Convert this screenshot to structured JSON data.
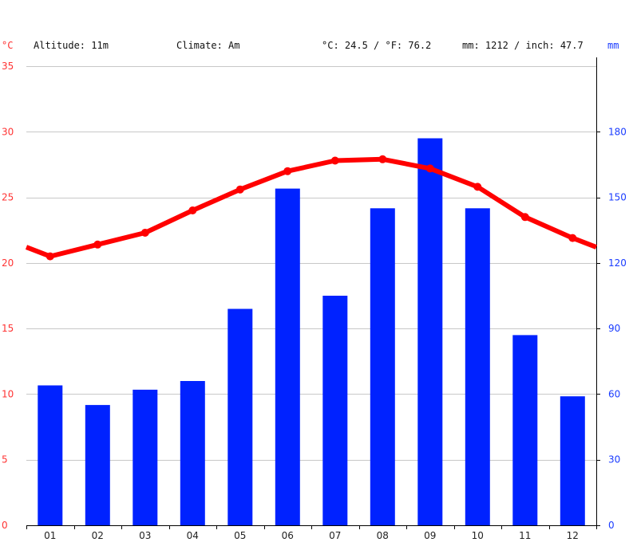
{
  "header": {
    "unit_left": "°C",
    "altitude": "Altitude: 11m",
    "climate": "Climate: Am",
    "temperature": "°C: 24.5 / °F: 76.2",
    "precipitation": "mm: 1212 / inch: 47.7",
    "unit_right": "mm"
  },
  "colors": {
    "temperature_line": "#ff0000",
    "precipitation_bars": "#0022ff",
    "grid": "#c8c8c8",
    "left_axis_text": "#ff3333",
    "right_axis_text": "#1a3cff"
  },
  "chart_data": {
    "type": "bar+line",
    "categories": [
      "01",
      "02",
      "03",
      "04",
      "05",
      "06",
      "07",
      "08",
      "09",
      "10",
      "11",
      "12"
    ],
    "series": [
      {
        "name": "mm",
        "axis": "right",
        "type": "bar",
        "values": [
          64,
          55,
          62,
          66,
          99,
          154,
          105,
          145,
          177,
          145,
          87,
          59
        ]
      },
      {
        "name": "°C",
        "axis": "left",
        "type": "line",
        "values": [
          20.5,
          21.4,
          22.3,
          24.0,
          25.6,
          27.0,
          27.8,
          27.9,
          27.2,
          25.8,
          23.5,
          21.9
        ]
      }
    ],
    "left_axis": {
      "label": "°C",
      "ticks": [
        0,
        5,
        10,
        15,
        20,
        25,
        30,
        35
      ],
      "range": [
        0,
        35
      ]
    },
    "right_axis": {
      "label": "mm",
      "ticks": [
        0,
        30,
        60,
        90,
        120,
        150,
        180
      ],
      "range": [
        0,
        210
      ]
    },
    "grid": true
  }
}
